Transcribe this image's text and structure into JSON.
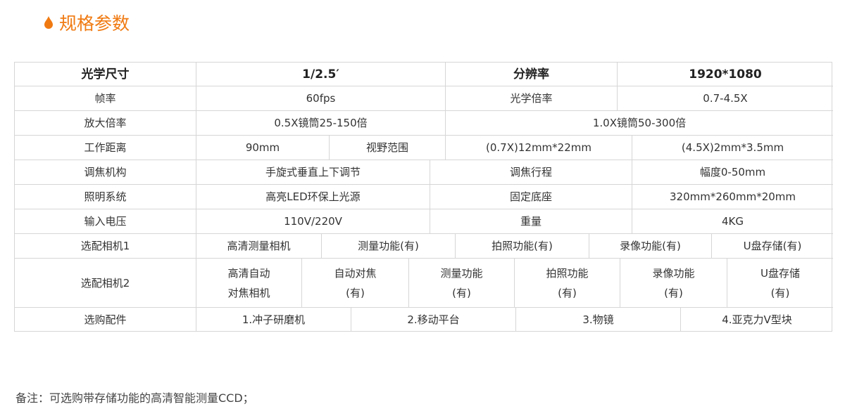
{
  "title": "规格参数",
  "accent_color": "#f07a12",
  "table": {
    "rows": [
      [
        "光学尺寸",
        "1/2.5′",
        "分辨率",
        "1920*1080"
      ],
      [
        "帧率",
        "60fps",
        "光学倍率",
        "0.7-4.5X"
      ],
      [
        "放大倍率",
        "0.5X镜筒25-150倍",
        "1.0X镜筒50-300倍"
      ],
      [
        "工作距离",
        "90mm",
        "视野范围",
        "(0.7X)12mm*22mm",
        "(4.5X)2mm*3.5mm"
      ],
      [
        "调焦机构",
        "手旋式垂直上下调节",
        "调焦行程",
        "幅度0-50mm"
      ],
      [
        "照明系统",
        "高亮LED环保上光源",
        "固定底座",
        "320mm*260mm*20mm"
      ],
      [
        "输入电压",
        "110V/220V",
        "重量",
        "4KG"
      ],
      [
        "选配相机1",
        "高清测量相机",
        "测量功能(有)",
        "拍照功能(有)",
        "录像功能(有)",
        "U盘存储(有)"
      ],
      [
        "选配相机2",
        "高清自动\n对焦相机",
        "自动对焦\n(有)",
        "测量功能\n(有)",
        "拍照功能\n(有)",
        "录像功能\n(有)",
        "U盘存储\n(有)"
      ],
      [
        "选购配件",
        "1.冲子研磨机",
        "2.移动平台",
        "3.物镜",
        "4.亚克力V型块"
      ]
    ]
  },
  "note": "备注：可选购带存储功能的高清智能测量CCD；"
}
